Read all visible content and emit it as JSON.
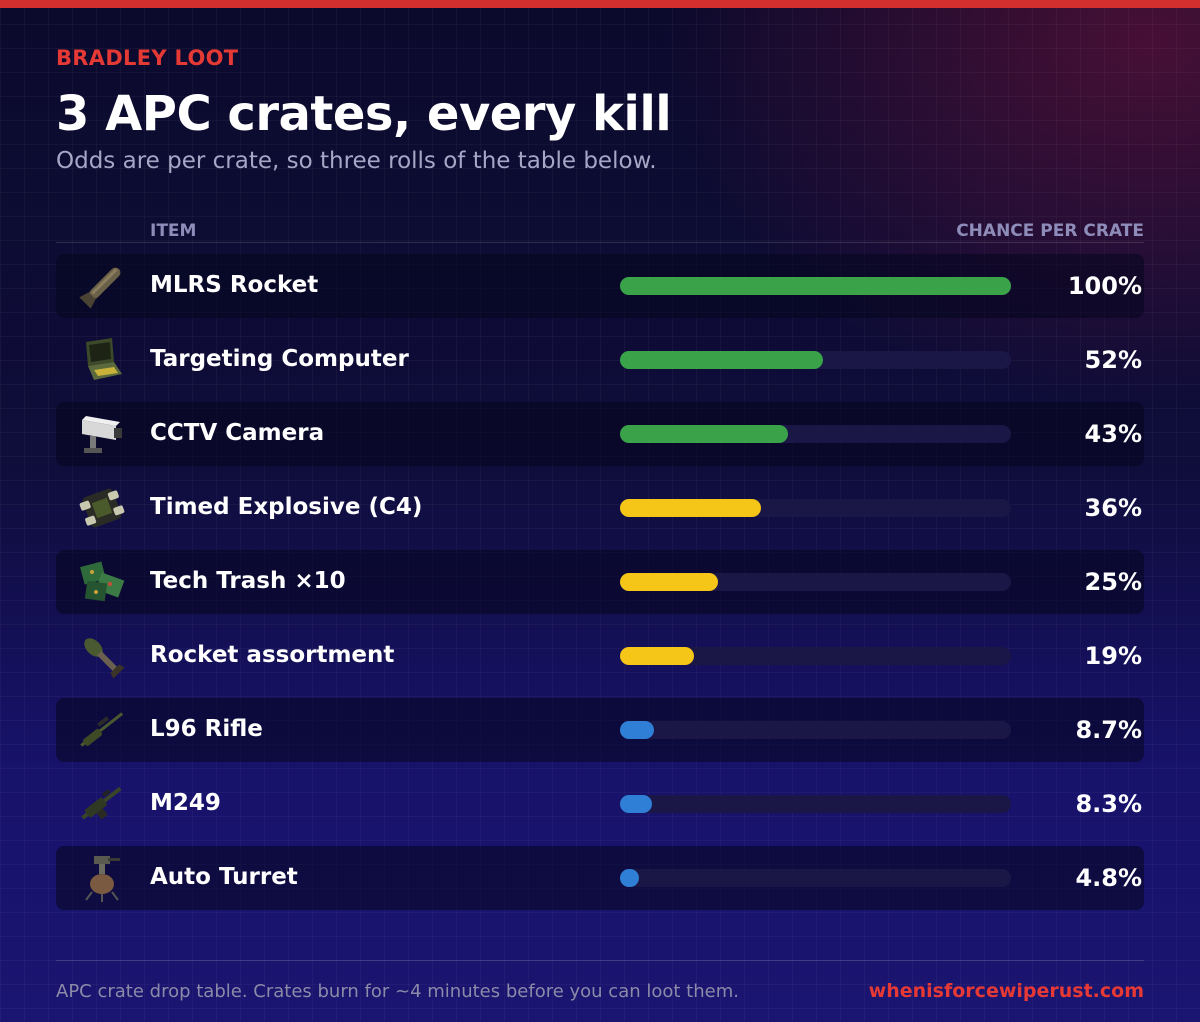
{
  "header": {
    "eyebrow": "BRADLEY LOOT",
    "title": "3 APC crates, every kill",
    "subtitle": "Odds are per crate, so three rolls of the table below."
  },
  "columns": {
    "item": "ITEM",
    "chance": "CHANCE PER CRATE"
  },
  "colors": {
    "high": "#3aa34a",
    "mid": "#f5c518",
    "low": "#2f7fd6",
    "accent": "#e53935",
    "track": "#1a1746"
  },
  "rows": [
    {
      "label": "MLRS Rocket",
      "pct": "100%",
      "tier": "high",
      "icon": "mlrs-rocket-icon"
    },
    {
      "label": "Targeting Computer",
      "pct": "52%",
      "tier": "high",
      "icon": "targeting-computer-icon"
    },
    {
      "label": "CCTV Camera",
      "pct": "43%",
      "tier": "high",
      "icon": "cctv-camera-icon"
    },
    {
      "label": "Timed Explosive (C4)",
      "pct": "36%",
      "tier": "mid",
      "icon": "c4-explosive-icon"
    },
    {
      "label": "Tech Trash ×10",
      "pct": "25%",
      "tier": "mid",
      "icon": "tech-trash-icon"
    },
    {
      "label": "Rocket assortment",
      "pct": "19%",
      "tier": "mid",
      "icon": "rocket-icon"
    },
    {
      "label": "L96 Rifle",
      "pct": "8.7%",
      "tier": "low",
      "icon": "l96-rifle-icon"
    },
    {
      "label": "M249",
      "pct": "8.3%",
      "tier": "low",
      "icon": "m249-icon"
    },
    {
      "label": "Auto Turret",
      "pct": "4.8%",
      "tier": "low",
      "icon": "auto-turret-icon"
    }
  ],
  "chart_data": {
    "type": "bar",
    "orientation": "horizontal",
    "categories": [
      "MLRS Rocket",
      "Targeting Computer",
      "CCTV Camera",
      "Timed Explosive (C4)",
      "Tech Trash ×10",
      "Rocket assortment",
      "L96 Rifle",
      "M249",
      "Auto Turret"
    ],
    "values": [
      100,
      52,
      43,
      36,
      25,
      19,
      8.7,
      8.3,
      4.8
    ],
    "unit": "%",
    "xlim": [
      0,
      100
    ],
    "title": "3 APC crates, every kill",
    "subtitle": "Odds are per crate, so three rolls of the table below.",
    "xlabel": "CHANCE PER CRATE",
    "ylabel": "ITEM",
    "grid": false,
    "legend": "none"
  },
  "footer": {
    "note": "APC crate drop table. Crates burn for ~4 minutes before you can loot them.",
    "link": "whenisforcewiperust.com"
  }
}
